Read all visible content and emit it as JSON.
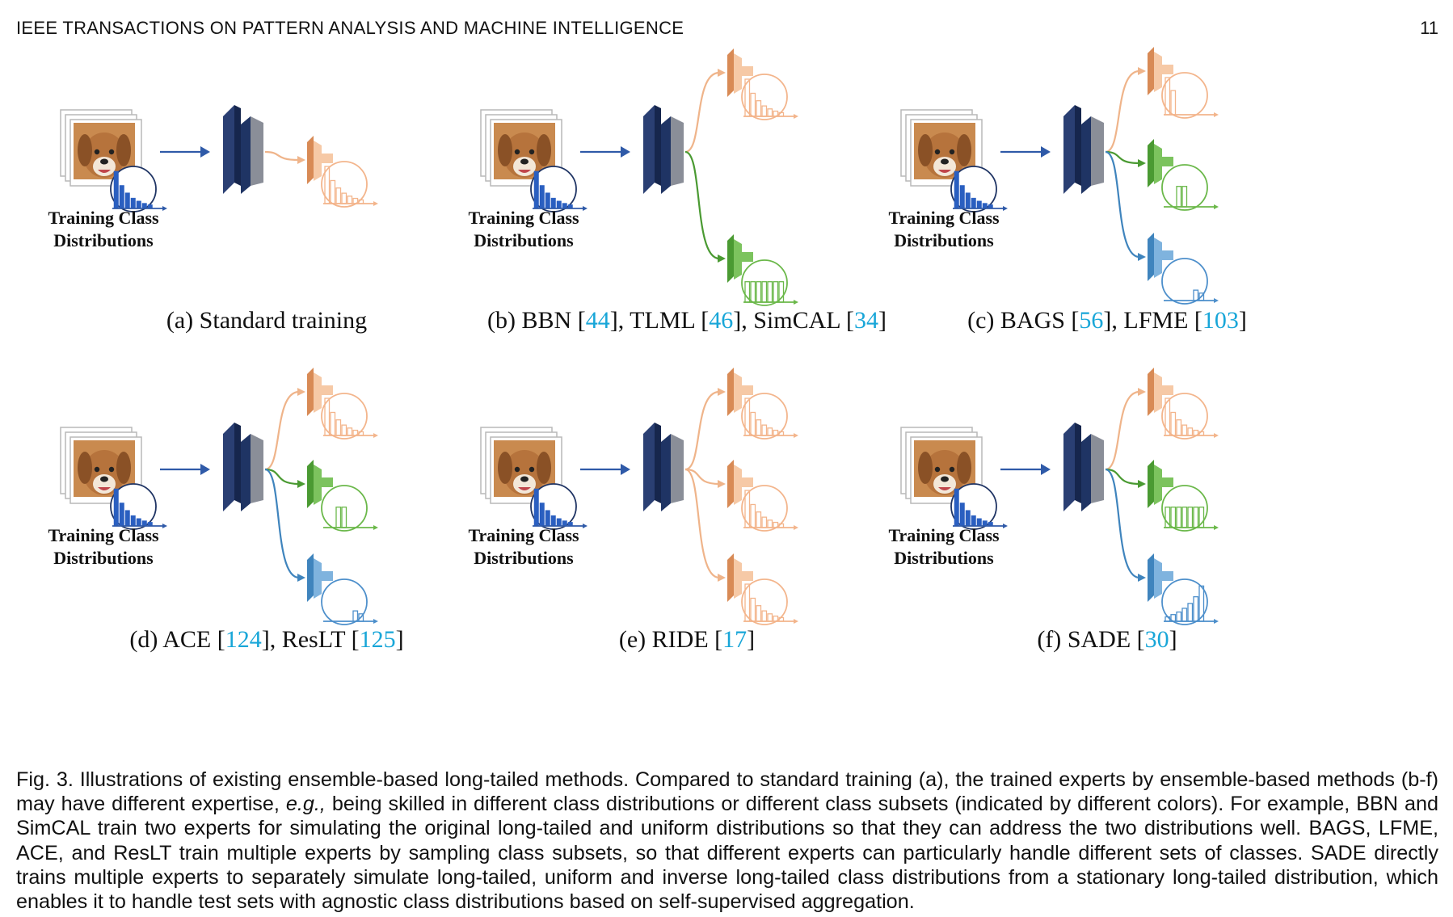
{
  "header": {
    "journal": "IEEE TRANSACTIONS ON PATTERN ANALYSIS AND MACHINE INTELLIGENCE",
    "page": "11"
  },
  "training_label_line1": "Training Class",
  "training_label_line2": "Distributions",
  "panels": [
    {
      "letter": "(a)",
      "title": "Standard training",
      "refs": [],
      "experts": [
        {
          "color": "orange",
          "dist": "long-tailed"
        }
      ]
    },
    {
      "letter": "(b)",
      "title": "BBN",
      "refs": [
        {
          "pre": " BBN [",
          "num": "44",
          "post": "],"
        },
        {
          "pre": " TLML [",
          "num": "46",
          "post": "],"
        },
        {
          "pre": " SimCAL [",
          "num": "34",
          "post": "]"
        }
      ],
      "experts": [
        {
          "color": "orange",
          "dist": "long-tailed"
        },
        {
          "color": "green",
          "dist": "uniform"
        }
      ]
    },
    {
      "letter": "(c)",
      "title": "BAGS",
      "refs": [
        {
          "pre": " BAGS [",
          "num": "56",
          "post": "],"
        },
        {
          "pre": " LFME [",
          "num": "103",
          "post": "]"
        }
      ],
      "experts": [
        {
          "color": "orange",
          "dist": "head"
        },
        {
          "color": "green",
          "dist": "middle"
        },
        {
          "color": "blue",
          "dist": "tail"
        }
      ]
    },
    {
      "letter": "(d)",
      "title": "ACE",
      "refs": [
        {
          "pre": " ACE [",
          "num": "124",
          "post": "],"
        },
        {
          "pre": " ResLT [",
          "num": "125",
          "post": "]"
        }
      ],
      "experts": [
        {
          "color": "orange",
          "dist": "long-tailed"
        },
        {
          "color": "green",
          "dist": "middle"
        },
        {
          "color": "blue",
          "dist": "tail"
        }
      ]
    },
    {
      "letter": "(e)",
      "title": "RIDE",
      "refs": [
        {
          "pre": " RIDE [",
          "num": "17",
          "post": "]"
        }
      ],
      "experts": [
        {
          "color": "orange",
          "dist": "long-tailed"
        },
        {
          "color": "orange",
          "dist": "long-tailed"
        },
        {
          "color": "orange",
          "dist": "long-tailed"
        }
      ]
    },
    {
      "letter": "(f)",
      "title": "SADE",
      "refs": [
        {
          "pre": " SADE [",
          "num": "30",
          "post": "]"
        }
      ],
      "experts": [
        {
          "color": "orange",
          "dist": "long-tailed"
        },
        {
          "color": "green",
          "dist": "uniform"
        },
        {
          "color": "blue",
          "dist": "inverse"
        }
      ]
    }
  ],
  "colors": {
    "orange": "#e8a070",
    "orange_light": "#f6c9a6",
    "green": "#4a9a32",
    "green_light": "#7cc35e",
    "blue": "#3f84bd",
    "blue_light": "#7fb3de",
    "navy": "#1f3464",
    "arrow": "#2f5aa8",
    "ref": "#18a6d8"
  },
  "caption": {
    "p1": "Fig. 3. Illustrations of existing ensemble-based long-tailed methods. Compared to standard training (a), the trained experts by ensemble-based methods (b-f) may have different expertise, ",
    "em": "e.g.,",
    "p2": " being skilled in different class distributions or different class subsets (indicated by different colors). For example, BBN and SimCAL train two experts for simulating the original long-tailed and uniform distributions so that they can address the two distributions well. BAGS, LFME, ACE, and ResLT train multiple experts by sampling class subsets, so that different experts can particularly handle different sets of classes. SADE directly trains multiple experts to separately simulate long-tailed, uniform and inverse long-tailed class distributions from a stationary long-tailed distribution, which enables it to handle test sets with agnostic class distributions based on self-supervised aggregation."
  }
}
